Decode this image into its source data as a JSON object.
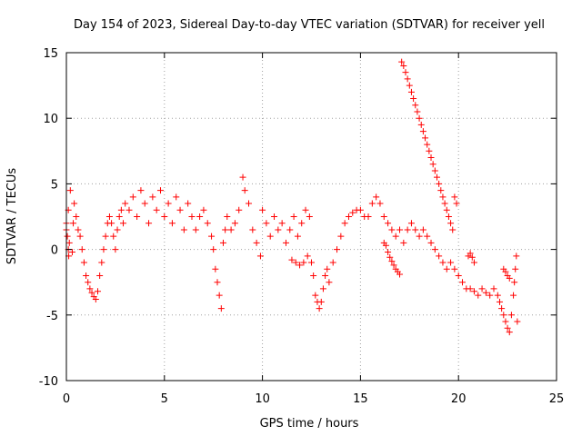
{
  "chart_data": {
    "type": "scatter",
    "title": "Day 154 of 2023, Sidereal Day-to-day VTEC variation (SDTVAR) for receiver yell",
    "xlabel": "GPS time / hours",
    "ylabel": "SDTVAR / TECUs",
    "xlim": [
      0,
      25
    ],
    "ylim": [
      -10,
      15
    ],
    "xticks": [
      0,
      5,
      10,
      15,
      20,
      25
    ],
    "yticks": [
      -10,
      -5,
      0,
      5,
      10,
      15
    ],
    "xtick_labels": [
      "0",
      "5",
      "10",
      "15",
      "20",
      "25"
    ],
    "ytick_labels": [
      "-10",
      "-5",
      "0",
      "5",
      "10",
      "15"
    ],
    "grid": true,
    "marker": "+",
    "color": "#ff0000",
    "series": [
      {
        "name": "main",
        "points": [
          [
            0.0,
            1.5
          ],
          [
            0.1,
            3.0
          ],
          [
            0.15,
            0.5
          ],
          [
            0.2,
            4.5
          ],
          [
            0.3,
            -0.2
          ],
          [
            0.35,
            2.0
          ],
          [
            0.4,
            3.5
          ],
          [
            0.5,
            2.5
          ],
          [
            0.6,
            1.5
          ],
          [
            0.7,
            1.0
          ],
          [
            0.8,
            0.0
          ],
          [
            0.9,
            -1.0
          ],
          [
            1.0,
            -2.0
          ],
          [
            1.1,
            -2.5
          ],
          [
            1.2,
            -3.0
          ],
          [
            1.3,
            -3.3
          ],
          [
            1.4,
            -3.6
          ],
          [
            1.5,
            -3.8
          ],
          [
            1.6,
            -3.2
          ],
          [
            1.7,
            -2.0
          ],
          [
            1.8,
            -1.0
          ],
          [
            1.9,
            0.0
          ],
          [
            2.0,
            1.0
          ],
          [
            2.1,
            2.0
          ],
          [
            2.2,
            2.5
          ],
          [
            2.3,
            2.0
          ],
          [
            2.4,
            1.0
          ],
          [
            2.5,
            0.0
          ],
          [
            2.6,
            1.5
          ],
          [
            2.7,
            2.5
          ],
          [
            2.8,
            3.0
          ],
          [
            2.9,
            2.0
          ],
          [
            3.0,
            3.5
          ],
          [
            3.2,
            3.0
          ],
          [
            3.4,
            4.0
          ],
          [
            3.6,
            2.5
          ],
          [
            3.8,
            4.5
          ],
          [
            4.0,
            3.5
          ],
          [
            4.2,
            2.0
          ],
          [
            4.4,
            4.0
          ],
          [
            4.6,
            3.0
          ],
          [
            4.8,
            4.5
          ],
          [
            5.0,
            2.5
          ],
          [
            5.2,
            3.5
          ],
          [
            5.4,
            2.0
          ],
          [
            5.6,
            4.0
          ],
          [
            5.8,
            3.0
          ],
          [
            6.0,
            1.5
          ],
          [
            6.2,
            3.5
          ],
          [
            6.4,
            2.5
          ],
          [
            6.6,
            1.5
          ],
          [
            6.8,
            2.5
          ],
          [
            7.0,
            3.0
          ],
          [
            7.2,
            2.0
          ],
          [
            7.4,
            1.0
          ],
          [
            7.5,
            0.0
          ],
          [
            7.6,
            -1.5
          ],
          [
            7.7,
            -2.5
          ],
          [
            7.8,
            -3.5
          ],
          [
            7.9,
            -4.5
          ],
          [
            8.0,
            0.5
          ],
          [
            8.1,
            1.5
          ],
          [
            8.2,
            2.5
          ],
          [
            8.4,
            1.5
          ],
          [
            8.6,
            2.0
          ],
          [
            8.8,
            3.0
          ],
          [
            9.0,
            5.5
          ],
          [
            9.1,
            4.5
          ],
          [
            9.3,
            3.5
          ],
          [
            9.5,
            1.5
          ],
          [
            9.7,
            0.5
          ],
          [
            9.9,
            -0.5
          ],
          [
            10.0,
            3.0
          ],
          [
            10.2,
            2.0
          ],
          [
            10.4,
            1.0
          ],
          [
            10.6,
            2.5
          ],
          [
            10.8,
            1.5
          ],
          [
            11.0,
            2.0
          ],
          [
            11.2,
            0.5
          ],
          [
            11.4,
            1.5
          ],
          [
            11.6,
            2.5
          ],
          [
            11.8,
            1.0
          ],
          [
            12.0,
            2.0
          ],
          [
            12.2,
            3.0
          ],
          [
            12.4,
            2.5
          ],
          [
            12.5,
            -1.0
          ],
          [
            12.6,
            -2.0
          ],
          [
            12.7,
            -3.5
          ],
          [
            12.8,
            -4.0
          ],
          [
            12.9,
            -4.5
          ],
          [
            13.0,
            -4.0
          ],
          [
            13.1,
            -3.0
          ],
          [
            13.2,
            -2.0
          ],
          [
            13.3,
            -1.5
          ],
          [
            13.4,
            -2.5
          ],
          [
            13.6,
            -1.0
          ],
          [
            13.8,
            0.0
          ],
          [
            14.0,
            1.0
          ],
          [
            14.2,
            2.0
          ],
          [
            14.4,
            2.5
          ],
          [
            14.6,
            2.8
          ],
          [
            14.8,
            3.0
          ],
          [
            15.0,
            3.0
          ],
          [
            15.2,
            2.5
          ],
          [
            15.4,
            2.5
          ],
          [
            15.6,
            3.5
          ],
          [
            15.8,
            4.0
          ],
          [
            16.0,
            3.5
          ],
          [
            16.2,
            2.5
          ],
          [
            16.4,
            2.0
          ],
          [
            16.6,
            1.5
          ],
          [
            16.8,
            1.0
          ],
          [
            17.0,
            1.5
          ],
          [
            17.2,
            0.5
          ],
          [
            17.4,
            1.5
          ],
          [
            17.6,
            2.0
          ],
          [
            17.8,
            1.5
          ],
          [
            18.0,
            1.0
          ],
          [
            18.2,
            1.5
          ],
          [
            18.4,
            1.0
          ],
          [
            18.6,
            0.5
          ],
          [
            18.8,
            0.0
          ],
          [
            19.0,
            -0.5
          ],
          [
            19.2,
            -1.0
          ],
          [
            19.4,
            -1.5
          ],
          [
            19.6,
            -1.0
          ],
          [
            19.8,
            -1.5
          ],
          [
            20.0,
            -2.0
          ],
          [
            20.2,
            -2.5
          ],
          [
            20.4,
            -3.0
          ],
          [
            20.6,
            -3.0
          ],
          [
            20.8,
            -3.2
          ],
          [
            21.0,
            -3.5
          ],
          [
            21.2,
            -3.0
          ],
          [
            21.4,
            -3.3
          ],
          [
            21.6,
            -3.5
          ],
          [
            21.8,
            -3.0
          ],
          [
            22.0,
            -3.5
          ],
          [
            22.1,
            -4.0
          ],
          [
            22.2,
            -4.5
          ],
          [
            22.3,
            -5.0
          ],
          [
            22.4,
            -5.5
          ],
          [
            22.5,
            -6.0
          ],
          [
            22.6,
            -6.3
          ],
          [
            22.7,
            -5.0
          ],
          [
            22.8,
            -3.5
          ],
          [
            22.85,
            -2.5
          ],
          [
            22.9,
            -1.5
          ],
          [
            22.95,
            -0.5
          ],
          [
            23.0,
            -5.5
          ]
        ]
      },
      {
        "name": "secondary-paths",
        "points": [
          [
            16.2,
            0.5
          ],
          [
            16.3,
            0.3
          ],
          [
            16.4,
            -0.2
          ],
          [
            16.5,
            -0.6
          ],
          [
            16.6,
            -0.9
          ],
          [
            16.7,
            -1.2
          ],
          [
            16.8,
            -1.5
          ],
          [
            16.9,
            -1.7
          ],
          [
            17.0,
            -1.9
          ],
          [
            17.1,
            14.3
          ],
          [
            17.2,
            14.0
          ],
          [
            17.3,
            13.5
          ],
          [
            17.4,
            13.0
          ],
          [
            17.5,
            12.5
          ],
          [
            17.6,
            12.0
          ],
          [
            17.7,
            11.5
          ],
          [
            17.8,
            11.0
          ],
          [
            17.9,
            10.5
          ],
          [
            18.0,
            10.0
          ],
          [
            18.1,
            9.5
          ],
          [
            18.2,
            9.0
          ],
          [
            18.3,
            8.5
          ],
          [
            18.4,
            8.0
          ],
          [
            18.5,
            7.5
          ],
          [
            18.6,
            7.0
          ],
          [
            18.7,
            6.5
          ],
          [
            18.8,
            6.0
          ],
          [
            18.9,
            5.5
          ],
          [
            19.0,
            5.0
          ],
          [
            19.1,
            4.5
          ],
          [
            19.2,
            4.0
          ],
          [
            19.3,
            3.5
          ],
          [
            19.4,
            3.0
          ],
          [
            19.5,
            2.5
          ],
          [
            19.6,
            2.0
          ],
          [
            19.7,
            1.5
          ],
          [
            19.8,
            4.0
          ],
          [
            19.9,
            3.5
          ],
          [
            11.5,
            -0.8
          ],
          [
            11.7,
            -1.0
          ],
          [
            11.9,
            -1.2
          ],
          [
            12.1,
            -1.0
          ],
          [
            12.3,
            -0.5
          ],
          [
            0.0,
            2.0
          ],
          [
            0.05,
            1.0
          ],
          [
            0.1,
            0.0
          ],
          [
            0.12,
            -0.5
          ],
          [
            20.5,
            -0.5
          ],
          [
            20.6,
            -0.3
          ],
          [
            20.7,
            -0.6
          ],
          [
            20.8,
            -1.0
          ],
          [
            22.3,
            -1.5
          ],
          [
            22.4,
            -1.7
          ],
          [
            22.5,
            -2.0
          ],
          [
            22.6,
            -2.2
          ]
        ]
      }
    ]
  }
}
